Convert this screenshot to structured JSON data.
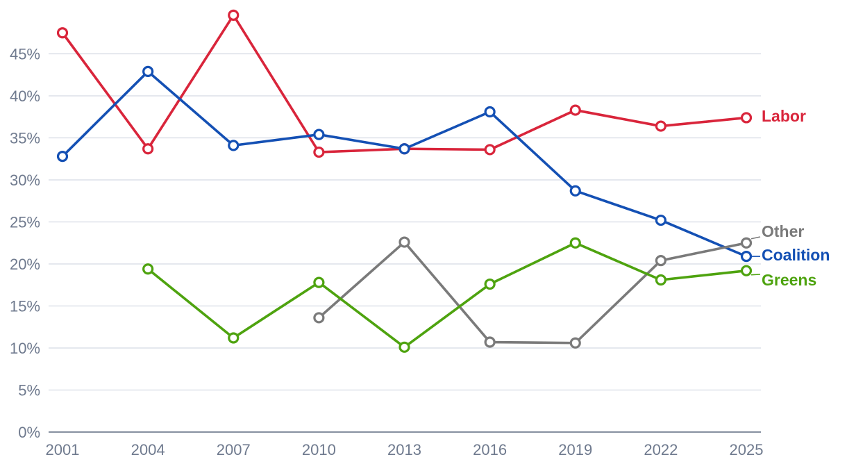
{
  "chart_data": {
    "type": "line",
    "title": "",
    "xlabel": "",
    "ylabel": "",
    "x": [
      "2001",
      "2004",
      "2007",
      "2010",
      "2013",
      "2016",
      "2019",
      "2022",
      "2025"
    ],
    "ylim": [
      0,
      50
    ],
    "yticks": [
      0,
      5,
      10,
      15,
      20,
      25,
      30,
      35,
      40,
      45
    ],
    "ytick_labels": [
      "0%",
      "5%",
      "10%",
      "15%",
      "20%",
      "25%",
      "30%",
      "35%",
      "40%",
      "45%"
    ],
    "grid": true,
    "legend": "direct labels at right end of lines",
    "series": [
      {
        "name": "Labor",
        "color": "#d9253b",
        "values": [
          47.5,
          33.7,
          49.6,
          33.3,
          33.7,
          33.6,
          38.3,
          36.4,
          37.4
        ]
      },
      {
        "name": "Coalition",
        "color": "#1450b4",
        "values": [
          32.8,
          42.9,
          34.1,
          35.4,
          33.7,
          38.1,
          28.7,
          25.2,
          20.9
        ]
      },
      {
        "name": "Other",
        "color": "#7a7a7a",
        "values": [
          null,
          null,
          null,
          13.6,
          22.6,
          10.7,
          10.6,
          20.4,
          22.5
        ]
      },
      {
        "name": "Greens",
        "color": "#4ea30f",
        "values": [
          null,
          19.4,
          11.2,
          17.8,
          10.1,
          17.6,
          22.5,
          18.1,
          19.2
        ]
      }
    ]
  }
}
